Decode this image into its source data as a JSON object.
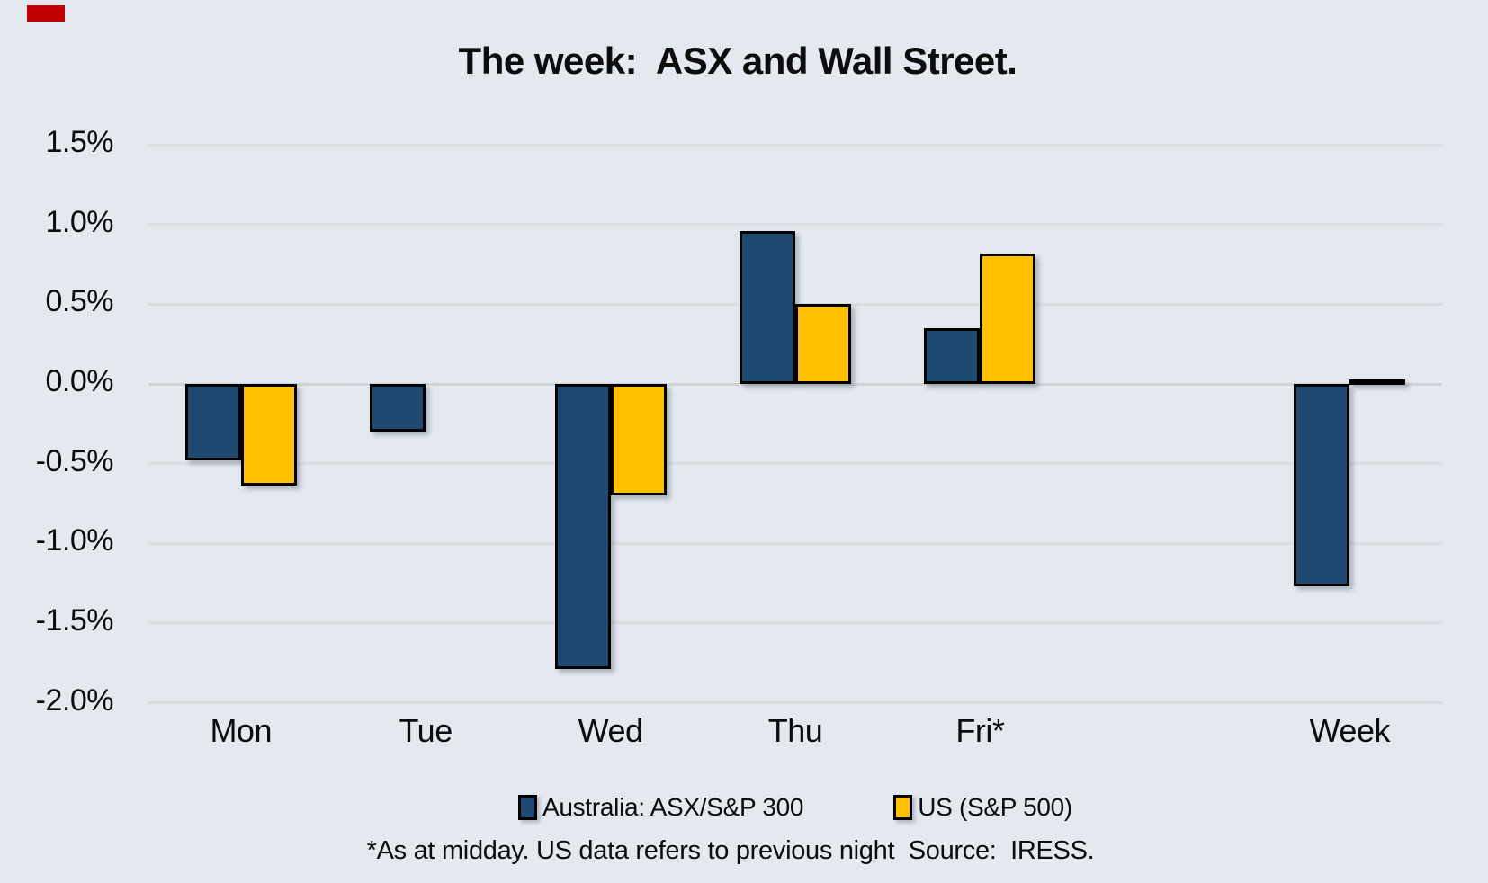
{
  "title": "The week:  ASX and Wall Street.",
  "decoration": {
    "corner_mark_color": "#c00000"
  },
  "colors": {
    "background": "#e4e9f0",
    "australia_series": "#1e4a72",
    "us_series": "#ffc000",
    "bar_outline": "#000000",
    "gridline": "#dbdfe3",
    "zero_line": "#cfd4d9",
    "text": "#0d0d0d"
  },
  "chart_data": {
    "type": "bar",
    "title": "The week:  ASX and Wall Street.",
    "categories": [
      "Mon",
      "Tue",
      "Wed",
      "Thu",
      "Fri*",
      "Week"
    ],
    "series": [
      {
        "name": "Australia: ASX/S&P 300",
        "color": "#1e4a72",
        "values": [
          -0.48,
          -0.3,
          -1.79,
          0.96,
          0.35,
          -1.27
        ]
      },
      {
        "name": "US (S&P 500)",
        "color": "#ffc000",
        "values": [
          -0.64,
          0.0,
          -0.7,
          0.5,
          0.82,
          0.01
        ]
      }
    ],
    "xlabel": "",
    "ylabel": "",
    "y_ticks": [
      "1.5%",
      "1.0%",
      "0.5%",
      "0.0%",
      "-0.5%",
      "-1.0%",
      "-1.5%",
      "-2.0%"
    ],
    "y_tick_values": [
      1.5,
      1.0,
      0.5,
      0.0,
      -0.5,
      -1.0,
      -1.5,
      -2.0
    ],
    "ylim": [
      -2.0,
      1.5
    ],
    "grid": "horizontal",
    "legend_position": "bottom",
    "note_about_gap": "empty category slot between Fri* and Week"
  },
  "legend": {
    "items": [
      {
        "label": "Australia: ASX/S&P 300",
        "color": "#1e4a72"
      },
      {
        "label": "US (S&P 500)",
        "color": "#ffc000"
      }
    ]
  },
  "footnote": "*As at midday. US data refers to previous night  Source:  IRESS."
}
